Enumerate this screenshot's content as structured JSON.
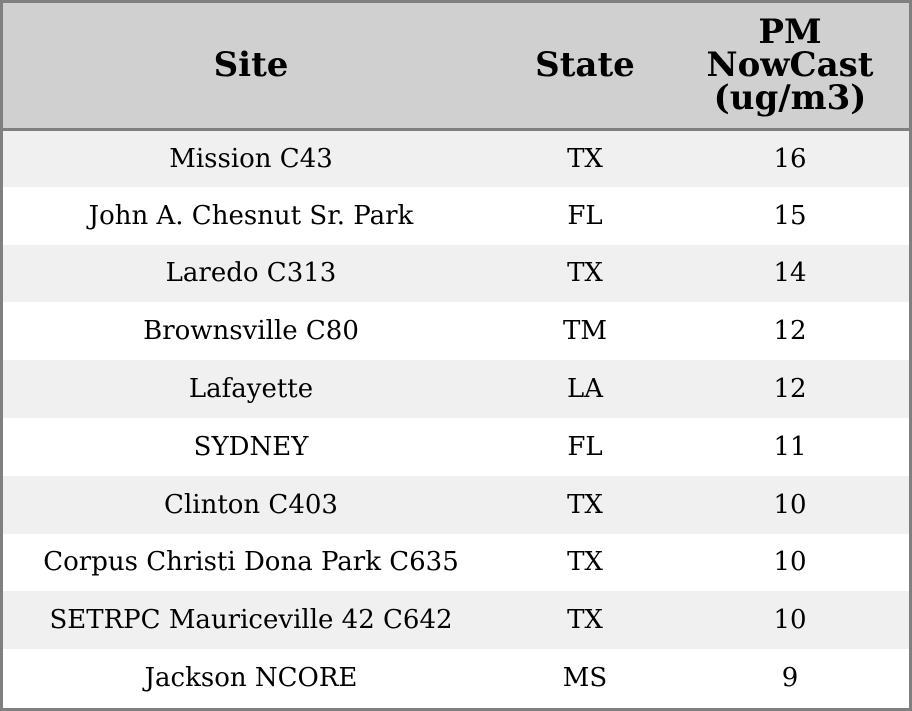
{
  "table": {
    "headers": {
      "site": "Site",
      "state": "State",
      "pm_line1": "PM",
      "pm_line2": "NowCast",
      "pm_line3": "(ug/m3)"
    },
    "rows": [
      {
        "site": "Mission C43",
        "state": "TX",
        "pm": "16"
      },
      {
        "site": "John A. Chesnut Sr. Park",
        "state": "FL",
        "pm": "15"
      },
      {
        "site": "Laredo C313",
        "state": "TX",
        "pm": "14"
      },
      {
        "site": "Brownsville C80",
        "state": "TM",
        "pm": "12"
      },
      {
        "site": "Lafayette",
        "state": "LA",
        "pm": "12"
      },
      {
        "site": "SYDNEY",
        "state": "FL",
        "pm": "11"
      },
      {
        "site": "Clinton C403",
        "state": "TX",
        "pm": "10"
      },
      {
        "site": "Corpus Christi Dona Park C635",
        "state": "TX",
        "pm": "10"
      },
      {
        "site": "SETRPC Mauriceville 42 C642",
        "state": "TX",
        "pm": "10"
      },
      {
        "site": "Jackson NCORE",
        "state": "MS",
        "pm": "9"
      }
    ]
  }
}
